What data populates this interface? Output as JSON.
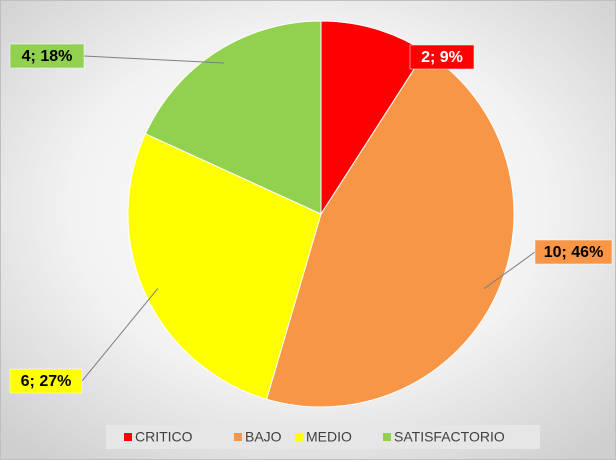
{
  "chart_data": {
    "type": "pie",
    "categories": [
      "CRITICO",
      "BAJO",
      "MEDIO",
      "SATISFACTORIO"
    ],
    "values": [
      2,
      10,
      6,
      4
    ],
    "value_labels": [
      "2; 9%",
      "10; 46%",
      "6; 27%",
      "4; 18%"
    ],
    "colors": [
      "#ff0000",
      "#f79646",
      "#ffff00",
      "#92d050"
    ],
    "legend": "bottom"
  }
}
